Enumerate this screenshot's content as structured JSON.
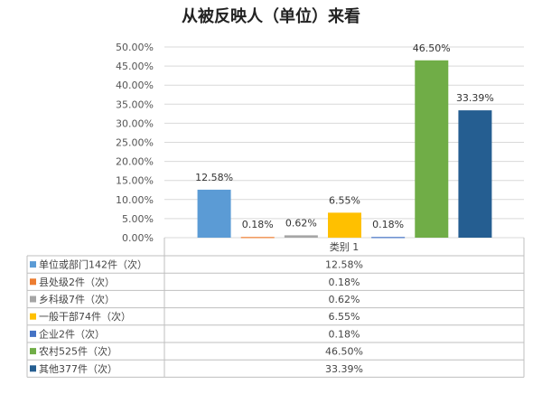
{
  "chart_data": {
    "type": "bar",
    "title": "从被反映人（单位）来看",
    "category_label": "类别 1",
    "y_ticks": [
      "0.00%",
      "5.00%",
      "10.00%",
      "15.00%",
      "20.00%",
      "25.00%",
      "30.00%",
      "35.00%",
      "40.00%",
      "45.00%",
      "50.00%"
    ],
    "ylim": [
      0,
      50
    ],
    "series": [
      {
        "name": "单位或部门142件（次）",
        "value": 12.58,
        "label": "12.58%",
        "color": "#5b9bd5"
      },
      {
        "name": "县处级2件（次）",
        "value": 0.18,
        "label": "0.18%",
        "color": "#ed7d31"
      },
      {
        "name": "乡科级7件（次）",
        "value": 0.62,
        "label": "0.62%",
        "color": "#a5a5a5"
      },
      {
        "name": "一般干部74件（次）",
        "value": 6.55,
        "label": "6.55%",
        "color": "#ffc000"
      },
      {
        "name": "企业2件（次）",
        "value": 0.18,
        "label": "0.18%",
        "color": "#4472c4"
      },
      {
        "name": "农村525件（次）",
        "value": 46.5,
        "label": "46.50%",
        "color": "#70ad47"
      },
      {
        "name": "其他377件（次）",
        "value": 33.39,
        "label": "33.39%",
        "color": "#255e91"
      }
    ]
  }
}
